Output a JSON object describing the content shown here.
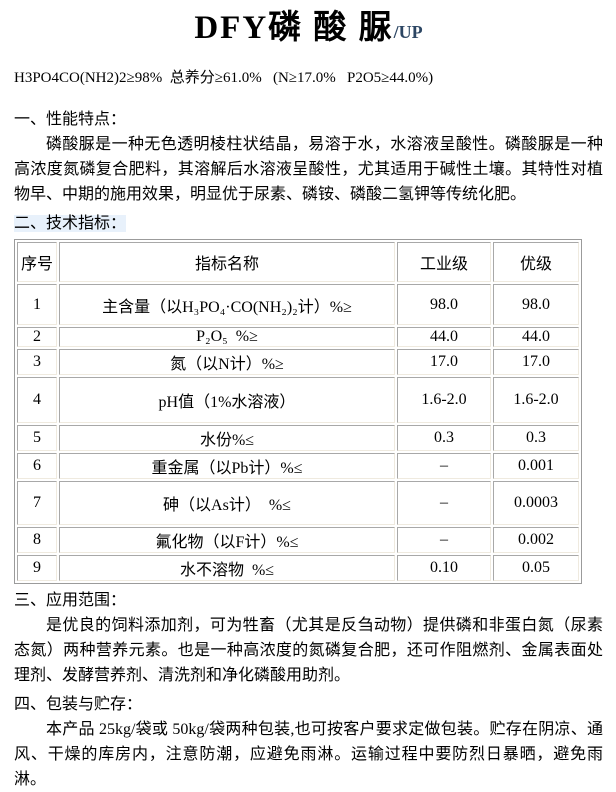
{
  "title": {
    "main": "DFY磷 酸 脲",
    "suffix": "/UP"
  },
  "specs_line": "H3PO4CO(NH2)2≥98%  总养分≥61.0%   (N≥17.0%   P2O5≥44.0%)",
  "sections": {
    "performance": {
      "heading": "一、性能特点：",
      "body": "磷酸脲是一种无色透明棱柱状结晶，易溶于水，水溶液呈酸性。磷酸脲是一种高浓度氮磷复合肥料，其溶解后水溶液呈酸性，尤其适用于碱性土壤。其特性对植物早、中期的施用效果，明显优于尿素、磷铵、磷酸二氢钾等传统化肥。"
    },
    "technical": {
      "heading": "二、技术指标："
    },
    "application": {
      "heading": "三、应用范围：",
      "body": "是优良的饲料添加剂，可为牲畜（尤其是反刍动物）提供磷和非蛋白氮（尿素态氮）两种营养元素。也是一种高浓度的氮磷复合肥，还可作阻燃剂、金属表面处理剂、发酵营养剂、清洗剂和净化磷酸用助剂。"
    },
    "packaging": {
      "heading": "四、包装与贮存：",
      "body": "本产品 25kg/袋或 50kg/袋两种包装,也可按客户要求定做包装。贮存在阴凉、通风、干燥的库房内，注意防潮，应避免雨淋。运输过程中要防烈日暴晒，避免雨淋。"
    }
  },
  "table": {
    "headers": [
      "序号",
      "指标名称",
      "工业级",
      "优级"
    ],
    "rows": [
      {
        "no": "1",
        "name": "主含量（以H₃PO₄·CO(NH₂)₂计）%≥",
        "industrial": "98.0",
        "premium": "98.0"
      },
      {
        "no": "2",
        "name": "P₂O₅  %≥",
        "industrial": "44.0",
        "premium": "44.0"
      },
      {
        "no": "3",
        "name": "氮（以N计）%≥",
        "industrial": "17.0",
        "premium": "17.0"
      },
      {
        "no": "4",
        "name": "pH值（1%水溶液）",
        "industrial": "1.6-2.0",
        "premium": "1.6-2.0"
      },
      {
        "no": "5",
        "name": "水份%≤",
        "industrial": "0.3",
        "premium": "0.3"
      },
      {
        "no": "6",
        "name": "重金属（以Pb计）%≤",
        "industrial": "–",
        "premium": "0.001"
      },
      {
        "no": "7",
        "name": "砷（以As计）  %≤",
        "industrial": "–",
        "premium": "0.0003"
      },
      {
        "no": "8",
        "name": "氟化物（以F计）%≤",
        "industrial": "–",
        "premium": "0.002"
      },
      {
        "no": "9",
        "name": "水不溶物  %≤",
        "industrial": "0.10",
        "premium": "0.05"
      }
    ]
  },
  "colors": {
    "highlight": "#e8f1fb",
    "title_suffix": "#2c4663",
    "table_border_dark": "#9b9b9b",
    "table_border_light": "#efeadf"
  }
}
